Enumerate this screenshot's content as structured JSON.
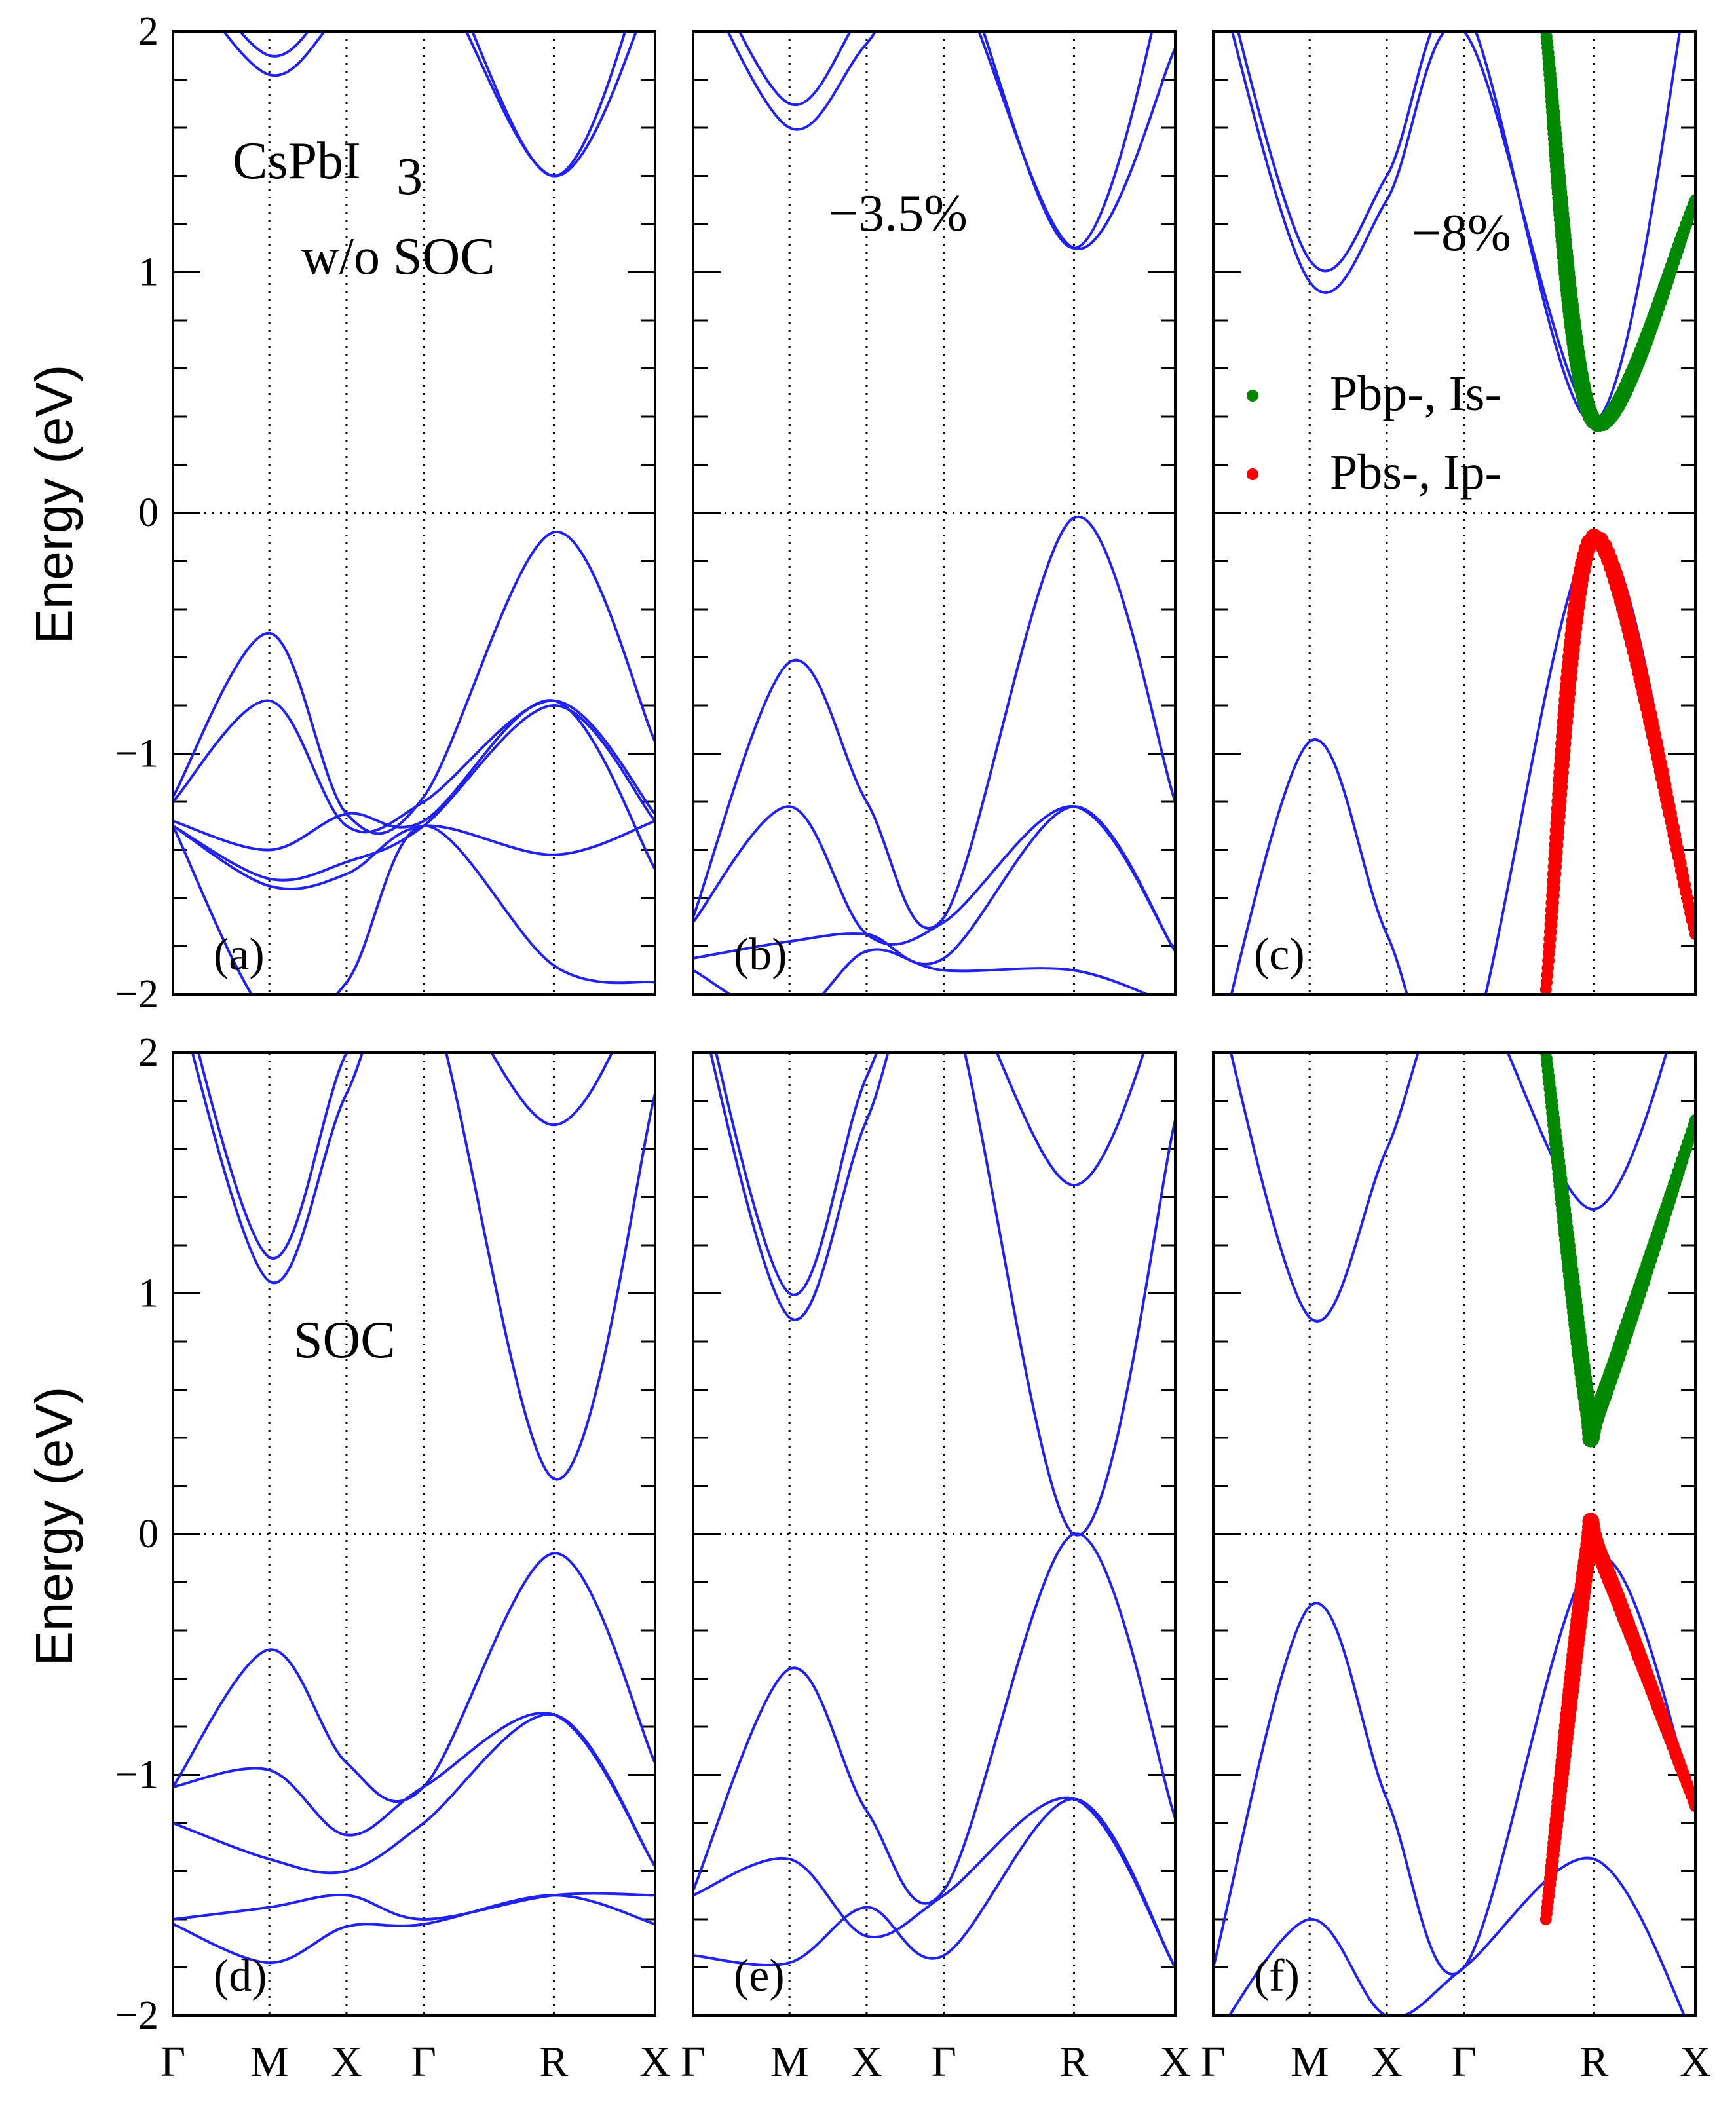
{
  "figure": {
    "y_axis_label": "Energy (eV)",
    "k_points": [
      "Γ",
      "M",
      "X",
      "Γ",
      "R",
      "X"
    ],
    "y_ticks": [
      "2",
      "1",
      "0",
      "−1",
      "−2"
    ]
  },
  "chart_data": [
    {
      "id": "a",
      "type": "line",
      "panel_label": "(a)",
      "title": "",
      "annotations": [
        "CsPbI",
        "3",
        "w/o SOC"
      ],
      "xlabel": "",
      "ylabel": "Energy (eV)",
      "ylim": [
        -2,
        2
      ],
      "x_ticks": [
        "Γ",
        "M",
        "X",
        "Γ",
        "R",
        "X"
      ],
      "x_positions": [
        0,
        0.2,
        0.36,
        0.52,
        0.79,
        1
      ],
      "fermi_level": 0,
      "series": [
        {
          "name": "band1",
          "x": [
            0,
            0.2,
            0.36,
            0.52,
            0.79,
            1
          ],
          "y": [
            -1.18,
            -0.5,
            -1.25,
            -1.18,
            -0.08,
            -0.95
          ]
        },
        {
          "name": "band2",
          "x": [
            0,
            0.2,
            0.36,
            0.52,
            0.79,
            1
          ],
          "y": [
            -1.2,
            -0.78,
            -1.3,
            -1.2,
            -0.78,
            -1.25
          ]
        },
        {
          "name": "band3",
          "x": [
            0,
            0.2,
            0.36,
            0.52,
            0.79,
            1
          ],
          "y": [
            -1.28,
            -1.4,
            -1.25,
            -1.28,
            -0.78,
            -1.48
          ]
        },
        {
          "name": "band4",
          "x": [
            0,
            0.2,
            0.36,
            0.52,
            0.79,
            1
          ],
          "y": [
            -1.3,
            -1.52,
            -1.45,
            -1.3,
            -0.8,
            -1.28
          ]
        },
        {
          "name": "band5",
          "x": [
            0,
            0.2,
            0.36,
            0.52,
            0.79,
            1
          ],
          "y": [
            -1.3,
            -1.55,
            -1.5,
            -1.3,
            -1.42,
            -1.28
          ]
        },
        {
          "name": "band6",
          "x": [
            0,
            0.2,
            0.36,
            0.52,
            0.79,
            1
          ],
          "y": [
            -1.3,
            -2.1,
            -1.95,
            -1.3,
            -1.88,
            -1.95
          ]
        },
        {
          "name": "cb1",
          "x": [
            0,
            0.2,
            0.36,
            0.52,
            0.79,
            1
          ],
          "y": [
            2.3,
            1.82,
            2.1,
            2.3,
            1.4,
            2.2
          ]
        },
        {
          "name": "cb2",
          "x": [
            0,
            0.2,
            0.36,
            0.52,
            0.79,
            1
          ],
          "y": [
            2.4,
            1.9,
            2.2,
            2.4,
            1.4,
            2.4
          ]
        }
      ]
    },
    {
      "id": "b",
      "type": "line",
      "panel_label": "(b)",
      "title": "",
      "annotations": [
        "−3.5%"
      ],
      "ylim": [
        -2,
        2
      ],
      "x_ticks": [
        "Γ",
        "M",
        "X",
        "Γ",
        "R",
        "X"
      ],
      "x_positions": [
        0,
        0.2,
        0.36,
        0.52,
        0.79,
        1
      ],
      "fermi_level": 0,
      "series": [
        {
          "name": "band1",
          "x": [
            0,
            0.2,
            0.36,
            0.52,
            0.79,
            1
          ],
          "y": [
            -1.68,
            -0.62,
            -1.2,
            -1.68,
            -0.02,
            -1.2
          ]
        },
        {
          "name": "band2",
          "x": [
            0,
            0.2,
            0.36,
            0.52,
            0.79,
            1
          ],
          "y": [
            -1.7,
            -1.22,
            -1.75,
            -1.7,
            -1.22,
            -1.82
          ]
        },
        {
          "name": "band3",
          "x": [
            0,
            0.2,
            0.36,
            0.52,
            0.79,
            1
          ],
          "y": [
            -1.85,
            -1.78,
            -1.75,
            -1.85,
            -1.22,
            -1.82
          ]
        },
        {
          "name": "band4",
          "x": [
            0,
            0.2,
            0.36,
            0.52,
            0.79,
            1
          ],
          "y": [
            -1.9,
            -2.1,
            -1.82,
            -1.9,
            -1.9,
            -2.05
          ]
        },
        {
          "name": "cb1",
          "x": [
            0,
            0.2,
            0.36,
            0.52,
            0.79,
            1
          ],
          "y": [
            2.3,
            1.6,
            1.95,
            2.3,
            1.1,
            1.93
          ]
        },
        {
          "name": "cb2",
          "x": [
            0,
            0.2,
            0.36,
            0.52,
            0.79,
            1
          ],
          "y": [
            2.4,
            1.7,
            2.1,
            2.4,
            1.1,
            2.4
          ]
        }
      ]
    },
    {
      "id": "c",
      "type": "line",
      "panel_label": "(c)",
      "title": "",
      "annotations": [
        "−8%"
      ],
      "ylim": [
        -2,
        2
      ],
      "x_ticks": [
        "Γ",
        "M",
        "X",
        "Γ",
        "R",
        "X"
      ],
      "x_positions": [
        0,
        0.2,
        0.36,
        0.52,
        0.79,
        1
      ],
      "fermi_level": 0,
      "legend": [
        {
          "label": "Pbp-, Is-",
          "color": "#008800"
        },
        {
          "label": "Pbs-, Ip-",
          "color": "#ff0000"
        }
      ],
      "series": [
        {
          "name": "vb",
          "x": [
            0,
            0.2,
            0.36,
            0.52,
            0.79,
            1
          ],
          "y": [
            -2.3,
            -0.95,
            -1.75,
            -2.3,
            -0.1,
            -1.75
          ]
        },
        {
          "name": "cb1",
          "x": [
            0,
            0.2,
            0.36,
            0.52,
            0.79,
            1
          ],
          "y": [
            2.3,
            0.96,
            1.3,
            2.0,
            0.38,
            1.3
          ]
        },
        {
          "name": "cb2",
          "x": [
            0,
            0.2,
            0.36,
            0.52,
            0.79,
            1
          ],
          "y": [
            2.4,
            1.05,
            1.4,
            2.1,
            0.38,
            2.4
          ]
        },
        {
          "name": "Pbp-,Is- projection",
          "x": [
            0.69,
            0.79,
            1
          ],
          "y": [
            2.0,
            0.38,
            1.3
          ]
        },
        {
          "name": "Pbs-,Ip- projection",
          "x": [
            0.69,
            0.79,
            1
          ],
          "y": [
            -1.98,
            -0.1,
            -1.75
          ]
        }
      ]
    },
    {
      "id": "d",
      "type": "line",
      "panel_label": "(d)",
      "title": "",
      "annotations": [
        "SOC"
      ],
      "ylim": [
        -2,
        2
      ],
      "x_ticks": [
        "Γ",
        "M",
        "X",
        "Γ",
        "R",
        "X"
      ],
      "x_positions": [
        0,
        0.2,
        0.36,
        0.52,
        0.79,
        1
      ],
      "fermi_level": 0,
      "series": [
        {
          "name": "band1",
          "x": [
            0,
            0.2,
            0.36,
            0.52,
            0.79,
            1
          ],
          "y": [
            -1.05,
            -0.48,
            -0.95,
            -1.05,
            -0.08,
            -0.95
          ]
        },
        {
          "name": "band2",
          "x": [
            0,
            0.2,
            0.36,
            0.52,
            0.79,
            1
          ],
          "y": [
            -1.05,
            -0.98,
            -1.25,
            -1.05,
            -0.75,
            -1.38
          ]
        },
        {
          "name": "band3",
          "x": [
            0,
            0.2,
            0.36,
            0.52,
            0.79,
            1
          ],
          "y": [
            -1.2,
            -1.35,
            -1.4,
            -1.2,
            -0.75,
            -1.38
          ]
        },
        {
          "name": "band4",
          "x": [
            0,
            0.2,
            0.36,
            0.52,
            0.79,
            1
          ],
          "y": [
            -1.6,
            -1.55,
            -1.5,
            -1.6,
            -1.5,
            -1.5
          ]
        },
        {
          "name": "band5",
          "x": [
            0,
            0.2,
            0.36,
            0.52,
            0.79,
            1
          ],
          "y": [
            -1.62,
            -1.78,
            -1.63,
            -1.62,
            -1.5,
            -1.62
          ]
        },
        {
          "name": "cb1",
          "x": [
            0,
            0.2,
            0.36,
            0.52,
            0.79,
            1
          ],
          "y": [
            2.3,
            1.05,
            1.83,
            2.3,
            0.23,
            1.83
          ]
        },
        {
          "name": "cb2",
          "x": [
            0,
            0.2,
            0.36,
            0.52,
            0.79,
            1
          ],
          "y": [
            2.4,
            1.15,
            2.0,
            2.4,
            1.7,
            2.4
          ]
        }
      ]
    },
    {
      "id": "e",
      "type": "line",
      "panel_label": "(e)",
      "title": "",
      "annotations": [],
      "ylim": [
        -2,
        2
      ],
      "x_ticks": [
        "Γ",
        "M",
        "X",
        "Γ",
        "R",
        "X"
      ],
      "x_positions": [
        0,
        0.2,
        0.36,
        0.52,
        0.79,
        1
      ],
      "fermi_level": 0,
      "series": [
        {
          "name": "band1",
          "x": [
            0,
            0.2,
            0.36,
            0.52,
            0.79,
            1
          ],
          "y": [
            -1.48,
            -0.56,
            -1.15,
            -1.48,
            0.0,
            -1.18
          ]
        },
        {
          "name": "band2",
          "x": [
            0,
            0.2,
            0.36,
            0.52,
            0.79,
            1
          ],
          "y": [
            -1.5,
            -1.35,
            -1.67,
            -1.5,
            -1.1,
            -1.8
          ]
        },
        {
          "name": "band3",
          "x": [
            0,
            0.2,
            0.36,
            0.52,
            0.79,
            1
          ],
          "y": [
            -1.75,
            -1.78,
            -1.55,
            -1.75,
            -1.1,
            -1.8
          ]
        },
        {
          "name": "cb1",
          "x": [
            0,
            0.2,
            0.36,
            0.52,
            0.79,
            1
          ],
          "y": [
            2.3,
            0.9,
            1.72,
            2.3,
            0.0,
            1.72
          ]
        },
        {
          "name": "cb2",
          "x": [
            0,
            0.2,
            0.36,
            0.52,
            0.79,
            1
          ],
          "y": [
            2.4,
            1.0,
            1.9,
            2.4,
            1.45,
            2.4
          ]
        }
      ]
    },
    {
      "id": "f",
      "type": "line",
      "panel_label": "(f)",
      "title": "",
      "annotations": [],
      "ylim": [
        -2,
        2
      ],
      "x_ticks": [
        "Γ",
        "M",
        "X",
        "Γ",
        "R",
        "X"
      ],
      "x_positions": [
        0,
        0.2,
        0.36,
        0.52,
        0.79,
        1
      ],
      "fermi_level": 0,
      "series": [
        {
          "name": "vb",
          "x": [
            0,
            0.2,
            0.36,
            0.52,
            0.79,
            1
          ],
          "y": [
            -1.8,
            -0.3,
            -1.1,
            -1.8,
            -0.1,
            -1.13
          ]
        },
        {
          "name": "vb2",
          "x": [
            0,
            0.2,
            0.36,
            0.52,
            0.79,
            1
          ],
          "y": [
            -2.1,
            -1.6,
            -2.0,
            -1.8,
            -1.35,
            -2.1
          ]
        },
        {
          "name": "cb1",
          "x": [
            0,
            0.2,
            0.36,
            0.52,
            0.79,
            1
          ],
          "y": [
            2.3,
            0.9,
            1.6,
            2.3,
            1.35,
            2.4
          ]
        },
        {
          "name": "Pbp-,Is- projection",
          "x": [
            0.69,
            0.775,
            0.805,
            1
          ],
          "y": [
            2.0,
            0.55,
            0.55,
            1.72
          ]
        },
        {
          "name": "Pbs-,Ip- projection",
          "x": [
            0.69,
            0.775,
            0.805,
            1
          ],
          "y": [
            -1.6,
            -0.1,
            -0.1,
            -1.13
          ]
        }
      ]
    }
  ]
}
